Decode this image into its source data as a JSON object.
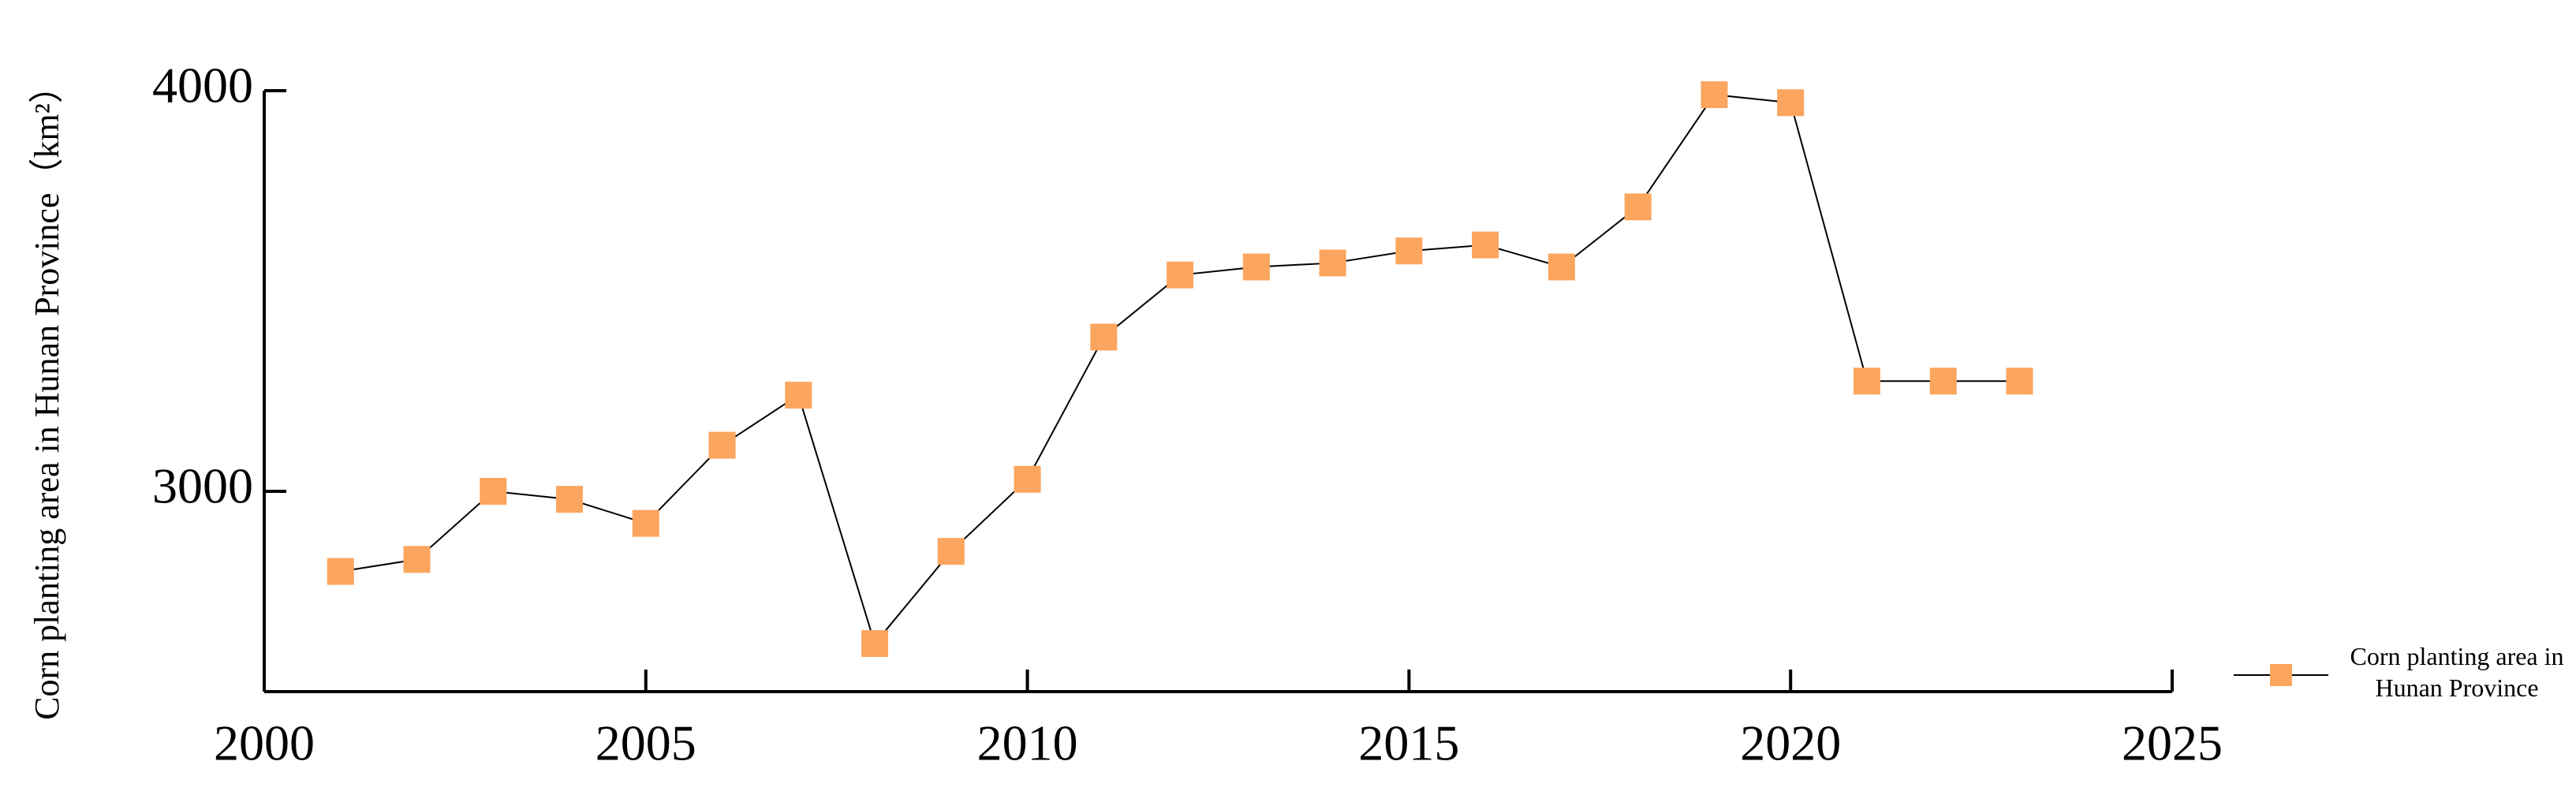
{
  "chart_data": {
    "type": "line",
    "y_label": "Corn planting area in Hunan Province（km²）",
    "x": [
      2001,
      2002,
      2003,
      2004,
      2005,
      2006,
      2007,
      2008,
      2009,
      2010,
      2011,
      2012,
      2013,
      2014,
      2015,
      2016,
      2017,
      2018,
      2019,
      2020,
      2021,
      2022,
      2023
    ],
    "series": [
      {
        "name": "Corn planting area in Hunan Province",
        "color": "#fba55f",
        "values": [
          2800,
          2830,
          3000,
          2980,
          2920,
          3115,
          3240,
          2620,
          2850,
          3030,
          3385,
          3540,
          3560,
          3570,
          3600,
          3615,
          3560,
          3710,
          3990,
          3970,
          3275,
          3275,
          3275
        ]
      }
    ],
    "xlim": [
      2000,
      2025
    ],
    "xticks": [
      2000,
      2005,
      2010,
      2015,
      2020,
      2025
    ],
    "ylim": [
      2500,
      4000
    ],
    "yticks": [
      3000,
      4000
    ],
    "grid": false,
    "legend": "bottom-right"
  }
}
